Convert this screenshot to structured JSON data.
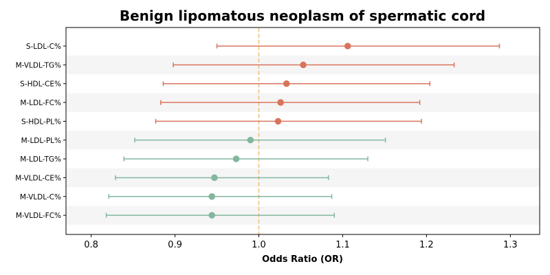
{
  "chart_data": {
    "type": "forest",
    "title": "Benign lipomatous neoplasm of spermatic cord",
    "xlabel": "Odds Ratio (OR)",
    "ylabel": "",
    "xlim": [
      0.77,
      1.335
    ],
    "xticks": [
      0.8,
      0.9,
      1.0,
      1.1,
      1.2,
      1.3
    ],
    "xtick_labels": [
      "0.8",
      "0.9",
      "1.0",
      "1.1",
      "1.2",
      "1.3"
    ],
    "reference_line": 1.0,
    "colors": {
      "positive": "#d9745b",
      "negative": "#82b79e",
      "reference": "#f0c27a",
      "band": "#f5f5f5"
    },
    "rows": [
      {
        "label": "S-LDL-C%",
        "or": 1.106,
        "lower": 0.95,
        "upper": 1.287,
        "group": "positive"
      },
      {
        "label": "M-VLDL-TG%",
        "or": 1.053,
        "lower": 0.898,
        "upper": 1.233,
        "group": "positive"
      },
      {
        "label": "S-HDL-CE%",
        "or": 1.033,
        "lower": 0.886,
        "upper": 1.204,
        "group": "positive"
      },
      {
        "label": "M-LDL-FC%",
        "or": 1.026,
        "lower": 0.883,
        "upper": 1.192,
        "group": "positive"
      },
      {
        "label": "S-HDL-PL%",
        "or": 1.023,
        "lower": 0.877,
        "upper": 1.194,
        "group": "positive"
      },
      {
        "label": "M-LDL-PL%",
        "or": 0.99,
        "lower": 0.852,
        "upper": 1.151,
        "group": "negative"
      },
      {
        "label": "M-LDL-TG%",
        "or": 0.973,
        "lower": 0.839,
        "upper": 1.13,
        "group": "negative"
      },
      {
        "label": "M-VLDL-CE%",
        "or": 0.947,
        "lower": 0.829,
        "upper": 1.083,
        "group": "negative"
      },
      {
        "label": "M-VLDL-C%",
        "or": 0.944,
        "lower": 0.821,
        "upper": 1.087,
        "group": "negative"
      },
      {
        "label": "M-VLDL-FC%",
        "or": 0.944,
        "lower": 0.818,
        "upper": 1.09,
        "group": "negative"
      }
    ]
  }
}
